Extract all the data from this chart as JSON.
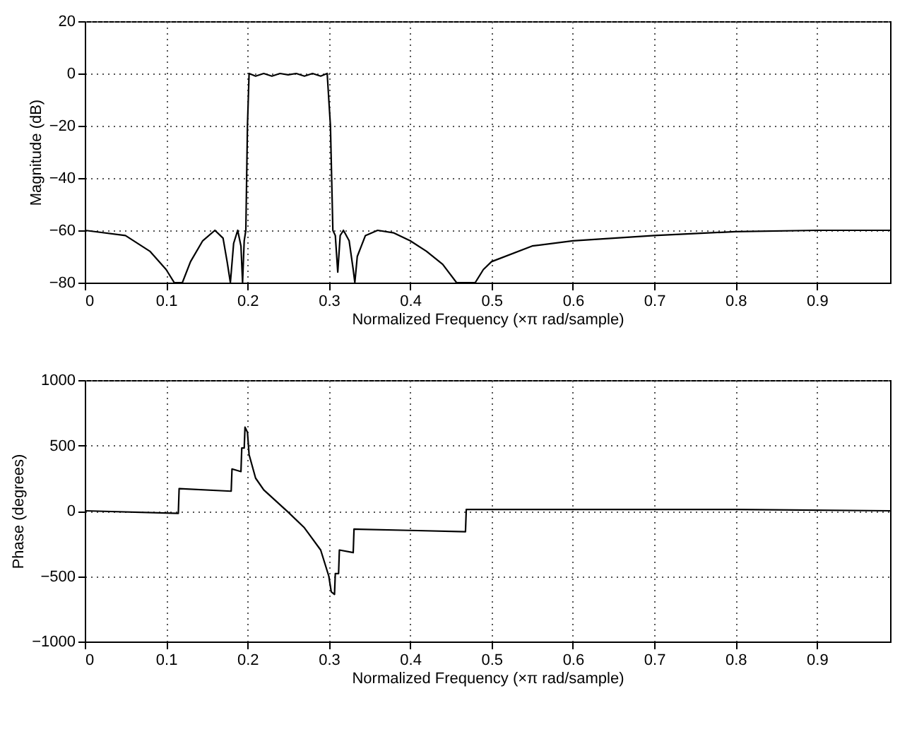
{
  "chart_data": [
    {
      "type": "line",
      "xlabel": "Normalized Frequency  (×π rad/sample)",
      "ylabel": "Magnitude (dB)",
      "xlim": [
        0,
        0.99
      ],
      "xticks": [
        0,
        0.1,
        0.2,
        0.3,
        0.4,
        0.5,
        0.6,
        0.7,
        0.8,
        0.9
      ],
      "ylim": [
        -80,
        20
      ],
      "yticks": [
        -80,
        -60,
        -40,
        -20,
        0,
        20
      ],
      "grid": true,
      "line_style": "solid",
      "series": [
        {
          "color": "#000000",
          "x": [
            0,
            0.05,
            0.08,
            0.1,
            0.11,
            0.12,
            0.13,
            0.145,
            0.16,
            0.17,
            0.175,
            0.179,
            0.183,
            0.188,
            0.192,
            0.194,
            0.196,
            0.198,
            0.2,
            0.202,
            0.21,
            0.22,
            0.23,
            0.24,
            0.25,
            0.26,
            0.27,
            0.28,
            0.29,
            0.298,
            0.302,
            0.305,
            0.308,
            0.311,
            0.314,
            0.318,
            0.325,
            0.33,
            0.332,
            0.335,
            0.345,
            0.36,
            0.38,
            0.4,
            0.42,
            0.44,
            0.457,
            0.48,
            0.49,
            0.5,
            0.55,
            0.6,
            0.7,
            0.8,
            0.9,
            0.99
          ],
          "values": [
            -60,
            -62,
            -68,
            -75,
            -80,
            -80,
            -72,
            -64,
            -60,
            -63,
            -72,
            -80,
            -65,
            -60,
            -66,
            -80,
            -64,
            -60,
            -20,
            0,
            -1,
            0,
            -1,
            0,
            -0.5,
            0,
            -1,
            0,
            -1,
            0,
            -20,
            -60,
            -62,
            -76,
            -62,
            -60,
            -64,
            -75,
            -80,
            -70,
            -62,
            -60,
            -61,
            -64,
            -68,
            -73,
            -80,
            -80,
            -75,
            -72,
            -66,
            -64,
            -62,
            -60.5,
            -60,
            -60
          ]
        }
      ]
    },
    {
      "type": "line",
      "xlabel": "Normalized Frequency  (×π rad/sample)",
      "ylabel": "Phase (degrees)",
      "xlim": [
        0,
        0.99
      ],
      "xticks": [
        0,
        0.1,
        0.2,
        0.3,
        0.4,
        0.5,
        0.6,
        0.7,
        0.8,
        0.9
      ],
      "ylim": [
        -1000,
        1000
      ],
      "yticks": [
        -1000,
        -500,
        0,
        500,
        1000
      ],
      "grid": true,
      "line_style": "solid",
      "series": [
        {
          "color": "#000000",
          "x": [
            0,
            0.115,
            0.116,
            0.18,
            0.181,
            0.192,
            0.193,
            0.196,
            0.197,
            0.2,
            0.202,
            0.21,
            0.22,
            0.25,
            0.27,
            0.29,
            0.3,
            0.303,
            0.307,
            0.308,
            0.312,
            0.313,
            0.33,
            0.331,
            0.4,
            0.468,
            0.469,
            0.6,
            0.8,
            0.99
          ],
          "values": [
            0,
            -20,
            170,
            150,
            320,
            300,
            480,
            480,
            640,
            600,
            430,
            250,
            160,
            -10,
            -130,
            -300,
            -500,
            -620,
            -640,
            -480,
            -480,
            -300,
            -320,
            -140,
            -150,
            -160,
            10,
            10,
            10,
            0
          ]
        }
      ]
    }
  ]
}
